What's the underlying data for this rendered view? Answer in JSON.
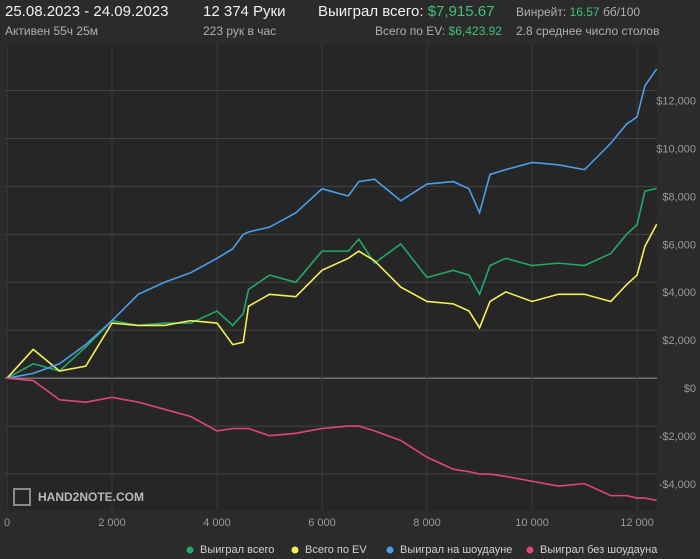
{
  "header": {
    "period": "25.08.2023 - 24.09.2023",
    "active": "Активен 55ч 25м",
    "hands": "12 374 Руки",
    "hands_per_hour": "223 рук в час",
    "won_label": "Выиграл всего:",
    "won_value": "$7,915.67",
    "ev_label": "Всего по EV:",
    "ev_value": "$6,423.92",
    "winrate_label": "Винрейт:",
    "winrate_value": "16.57",
    "winrate_unit": "бб/100",
    "tables": "2.8 среднее число столов"
  },
  "watermark": "HAND2NOTE.COM",
  "chart_data": {
    "type": "line",
    "x": [
      0,
      500,
      1000,
      1500,
      2000,
      2500,
      3000,
      3500,
      4000,
      4300,
      4500,
      4600,
      5000,
      5500,
      6000,
      6500,
      6700,
      7000,
      7500,
      8000,
      8500,
      8800,
      9000,
      9200,
      9500,
      10000,
      10500,
      11000,
      11500,
      11800,
      12000,
      12150,
      12374
    ],
    "series": [
      {
        "name": "Выиграл всего",
        "color": "#22a867",
        "values": [
          0,
          600,
          300,
          1300,
          2400,
          2200,
          2300,
          2300,
          2800,
          2200,
          2700,
          3700,
          4300,
          4000,
          5300,
          5300,
          5800,
          4800,
          5600,
          4200,
          4500,
          4300,
          3500,
          4700,
          5000,
          4700,
          4800,
          4700,
          5200,
          6000,
          6400,
          7800,
          7916
        ]
      },
      {
        "name": "Всего по EV",
        "color": "#f3f055",
        "values": [
          0,
          1200,
          300,
          500,
          2300,
          2200,
          2200,
          2400,
          2300,
          1400,
          1500,
          3000,
          3500,
          3400,
          4500,
          5000,
          5300,
          4900,
          3800,
          3200,
          3100,
          2800,
          2100,
          3200,
          3600,
          3200,
          3500,
          3500,
          3200,
          3900,
          4300,
          5500,
          6424
        ]
      },
      {
        "name": "Выиграл на шоудауне",
        "color": "#4a9fea",
        "values": [
          0,
          200,
          600,
          1400,
          2400,
          3500,
          4000,
          4400,
          5000,
          5400,
          6000,
          6100,
          6300,
          6900,
          7900,
          7600,
          8200,
          8300,
          7400,
          8100,
          8200,
          7900,
          6900,
          8500,
          8700,
          9000,
          8900,
          8700,
          9800,
          10600,
          10900,
          12200,
          12900
        ]
      },
      {
        "name": "Выиграл без шоудауна",
        "color": "#e0467c",
        "values": [
          0,
          -100,
          -900,
          -1000,
          -800,
          -1000,
          -1300,
          -1600,
          -2200,
          -2100,
          -2100,
          -2100,
          -2400,
          -2300,
          -2100,
          -2000,
          -2000,
          -2200,
          -2600,
          -3300,
          -3800,
          -3900,
          -4000,
          -4000,
          -4100,
          -4300,
          -4500,
          -4400,
          -4900,
          -4900,
          -5000,
          -5000,
          -5100
        ]
      }
    ],
    "xlim": [
      0,
      12380
    ],
    "ylim": [
      -5500,
      13900
    ],
    "xticks": [
      0,
      {
        "value": 2000,
        "label": "2 000"
      },
      {
        "value": 4000,
        "label": "4 000"
      },
      {
        "value": 6000,
        "label": "6 000"
      },
      {
        "value": 8000,
        "label": "8 000"
      },
      {
        "value": 10000,
        "label": "10 000"
      },
      {
        "value": 12000,
        "label": "12 000"
      }
    ],
    "yticks": [
      {
        "value": -4000,
        "label": "-$4,000"
      },
      {
        "value": -2000,
        "label": "-$2,000"
      },
      {
        "value": 0,
        "label": "$0"
      },
      {
        "value": 2000,
        "label": "$2,000"
      },
      {
        "value": 4000,
        "label": "$4,000"
      },
      {
        "value": 6000,
        "label": "$6,000"
      },
      {
        "value": 8000,
        "label": "$8,000"
      },
      {
        "value": 10000,
        "label": "$10,000"
      },
      {
        "value": 12000,
        "label": "$12,000"
      }
    ],
    "grid": true
  }
}
